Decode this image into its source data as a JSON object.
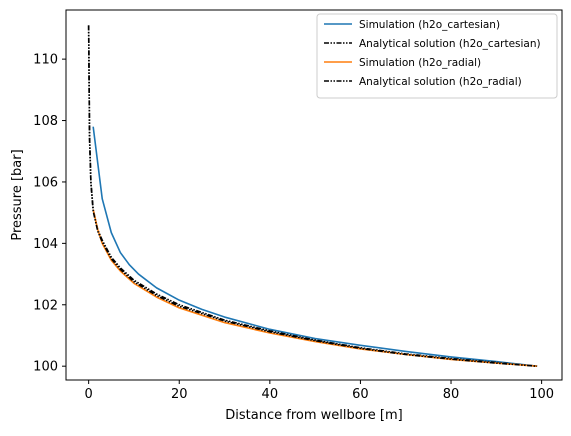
{
  "chart_data": {
    "type": "line",
    "xlabel": "Distance from wellbore [m]",
    "ylabel": "Pressure [bar]",
    "xlim": [
      -5,
      104.5
    ],
    "ylim": [
      99.55,
      111.6
    ],
    "xticks": [
      0,
      20,
      40,
      60,
      80,
      100
    ],
    "yticks": [
      100,
      102,
      104,
      106,
      108,
      110
    ],
    "grid": false,
    "legend_position": "top-right",
    "series": [
      {
        "name": "Simulation (h2o_cartesian)",
        "color": "#1f77b4",
        "style": "solid",
        "x": [
          1,
          3,
          5,
          7,
          9,
          11,
          15,
          20,
          25,
          30,
          40,
          50,
          60,
          70,
          80,
          90,
          99
        ],
        "y": [
          107.8,
          105.45,
          104.35,
          103.7,
          103.3,
          103.0,
          102.55,
          102.15,
          101.85,
          101.6,
          101.2,
          100.9,
          100.68,
          100.48,
          100.3,
          100.15,
          100.0
        ]
      },
      {
        "name": "Analytical solution (h2o_cartesian)",
        "color": "#000000",
        "style": "dashdot",
        "x": [
          0,
          0.2,
          0.5,
          1,
          2,
          3,
          5,
          7,
          10,
          15,
          20,
          30,
          40,
          50,
          60,
          70,
          80,
          90,
          99
        ],
        "y": [
          111.1,
          107.5,
          106.0,
          105.1,
          104.45,
          104.1,
          103.55,
          103.2,
          102.8,
          102.35,
          102.0,
          101.5,
          101.15,
          100.85,
          100.6,
          100.4,
          100.25,
          100.12,
          100.0
        ]
      },
      {
        "name": "Simulation (h2o_radial)",
        "color": "#ff7f0e",
        "style": "solid",
        "x": [
          1,
          2,
          3,
          5,
          7,
          10,
          15,
          20,
          30,
          40,
          50,
          60,
          70,
          80,
          90,
          99
        ],
        "y": [
          105.1,
          104.45,
          104.0,
          103.45,
          103.1,
          102.7,
          102.25,
          101.9,
          101.42,
          101.08,
          100.8,
          100.56,
          100.38,
          100.22,
          100.1,
          100.0
        ]
      },
      {
        "name": "Analytical solution (h2o_radial)",
        "color": "#000000",
        "style": "dashdot",
        "x": [
          0,
          0.2,
          0.5,
          1,
          2,
          3,
          5,
          7,
          10,
          15,
          20,
          30,
          40,
          50,
          60,
          70,
          80,
          90,
          99
        ],
        "y": [
          111.1,
          107.4,
          105.95,
          105.05,
          104.4,
          104.05,
          103.5,
          103.15,
          102.75,
          102.3,
          101.95,
          101.47,
          101.12,
          100.83,
          100.58,
          100.38,
          100.23,
          100.1,
          100.0
        ]
      }
    ]
  }
}
